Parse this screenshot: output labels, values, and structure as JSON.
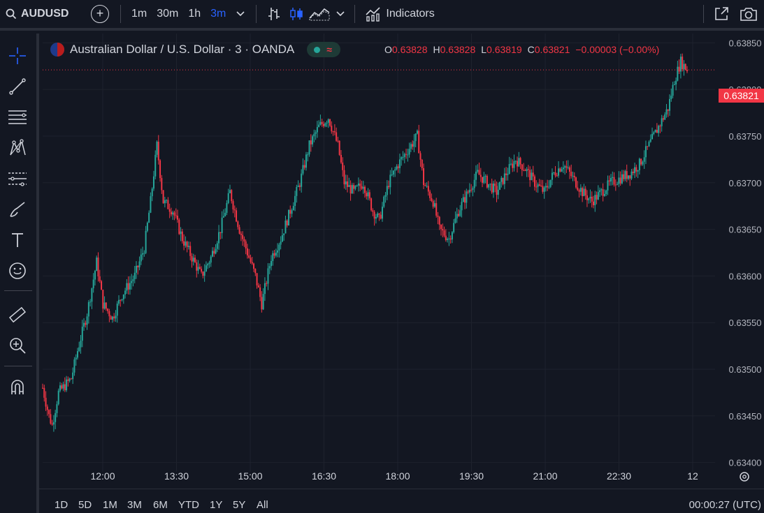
{
  "toolbar": {
    "symbol": "AUDUSD",
    "intervals": [
      "1m",
      "30m",
      "1h",
      "3m"
    ],
    "active_interval": "3m",
    "indicators_label": "Indicators"
  },
  "legend": {
    "title": "Australian Dollar / U.S. Dollar · 3 · OANDA",
    "o_label": "O",
    "o": "0.63828",
    "h_label": "H",
    "h": "0.63828",
    "l_label": "L",
    "l": "0.63819",
    "c_label": "C",
    "c": "0.63821",
    "change": "−0.00003 (−0.00%)"
  },
  "price_axis": {
    "labels": [
      "0.63850",
      "0.63800",
      "0.63750",
      "0.63700",
      "0.63650",
      "0.63600",
      "0.63550",
      "0.63500",
      "0.63450",
      "0.63400"
    ],
    "last_price": "0.63821"
  },
  "time_axis": {
    "labels": [
      "12:00",
      "13:30",
      "15:00",
      "16:30",
      "18:00",
      "19:30",
      "21:00",
      "22:30",
      "12"
    ]
  },
  "ranges": [
    "1D",
    "5D",
    "1M",
    "3M",
    "6M",
    "YTD",
    "1Y",
    "5Y",
    "All"
  ],
  "clock": "00:00:27 (UTC)",
  "colors": {
    "up": "#26a69a",
    "down": "#f23645",
    "bg": "#131722",
    "accent": "#2962ff"
  },
  "chart_data": {
    "type": "candlestick-line",
    "ylim": [
      0.6339,
      0.6386
    ],
    "x_labels": [
      "12:00",
      "13:30",
      "15:00",
      "16:30",
      "18:00",
      "19:30",
      "21:00",
      "22:30",
      "12"
    ],
    "anchors": [
      [
        0,
        0.6348
      ],
      [
        4,
        0.6345
      ],
      [
        6,
        0.6344
      ],
      [
        10,
        0.63475
      ],
      [
        18,
        0.6349
      ],
      [
        22,
        0.6352
      ],
      [
        28,
        0.6356
      ],
      [
        34,
        0.63615
      ],
      [
        38,
        0.6357
      ],
      [
        44,
        0.63555
      ],
      [
        50,
        0.6358
      ],
      [
        58,
        0.636
      ],
      [
        64,
        0.6363
      ],
      [
        68,
        0.6368
      ],
      [
        72,
        0.6374
      ],
      [
        76,
        0.6368
      ],
      [
        82,
        0.6367
      ],
      [
        88,
        0.6364
      ],
      [
        94,
        0.6362
      ],
      [
        100,
        0.636
      ],
      [
        106,
        0.6362
      ],
      [
        112,
        0.6365
      ],
      [
        118,
        0.6369
      ],
      [
        124,
        0.6365
      ],
      [
        128,
        0.6363
      ],
      [
        134,
        0.636
      ],
      [
        138,
        0.6357
      ],
      [
        144,
        0.6362
      ],
      [
        150,
        0.6364
      ],
      [
        156,
        0.6367
      ],
      [
        162,
        0.637
      ],
      [
        168,
        0.6374
      ],
      [
        174,
        0.6376
      ],
      [
        180,
        0.6377
      ],
      [
        186,
        0.6374
      ],
      [
        190,
        0.637
      ],
      [
        196,
        0.6369
      ],
      [
        202,
        0.637
      ],
      [
        208,
        0.6367
      ],
      [
        212,
        0.6366
      ],
      [
        218,
        0.637
      ],
      [
        224,
        0.6372
      ],
      [
        230,
        0.63735
      ],
      [
        236,
        0.6375
      ],
      [
        240,
        0.637
      ],
      [
        246,
        0.6368
      ],
      [
        250,
        0.6365
      ],
      [
        256,
        0.6364
      ],
      [
        262,
        0.6367
      ],
      [
        268,
        0.6369
      ],
      [
        274,
        0.6371
      ],
      [
        280,
        0.637
      ],
      [
        286,
        0.6369
      ],
      [
        292,
        0.6371
      ],
      [
        298,
        0.63725
      ],
      [
        304,
        0.63715
      ],
      [
        310,
        0.637
      ],
      [
        316,
        0.6369
      ],
      [
        322,
        0.6371
      ],
      [
        328,
        0.6372
      ],
      [
        334,
        0.63705
      ],
      [
        340,
        0.6369
      ],
      [
        346,
        0.6368
      ],
      [
        352,
        0.6369
      ],
      [
        358,
        0.637
      ],
      [
        364,
        0.63705
      ],
      [
        370,
        0.6371
      ],
      [
        376,
        0.6372
      ],
      [
        382,
        0.6374
      ],
      [
        388,
        0.6376
      ],
      [
        394,
        0.6378
      ],
      [
        398,
        0.6381
      ],
      [
        402,
        0.6383
      ],
      [
        406,
        0.63821
      ]
    ]
  }
}
